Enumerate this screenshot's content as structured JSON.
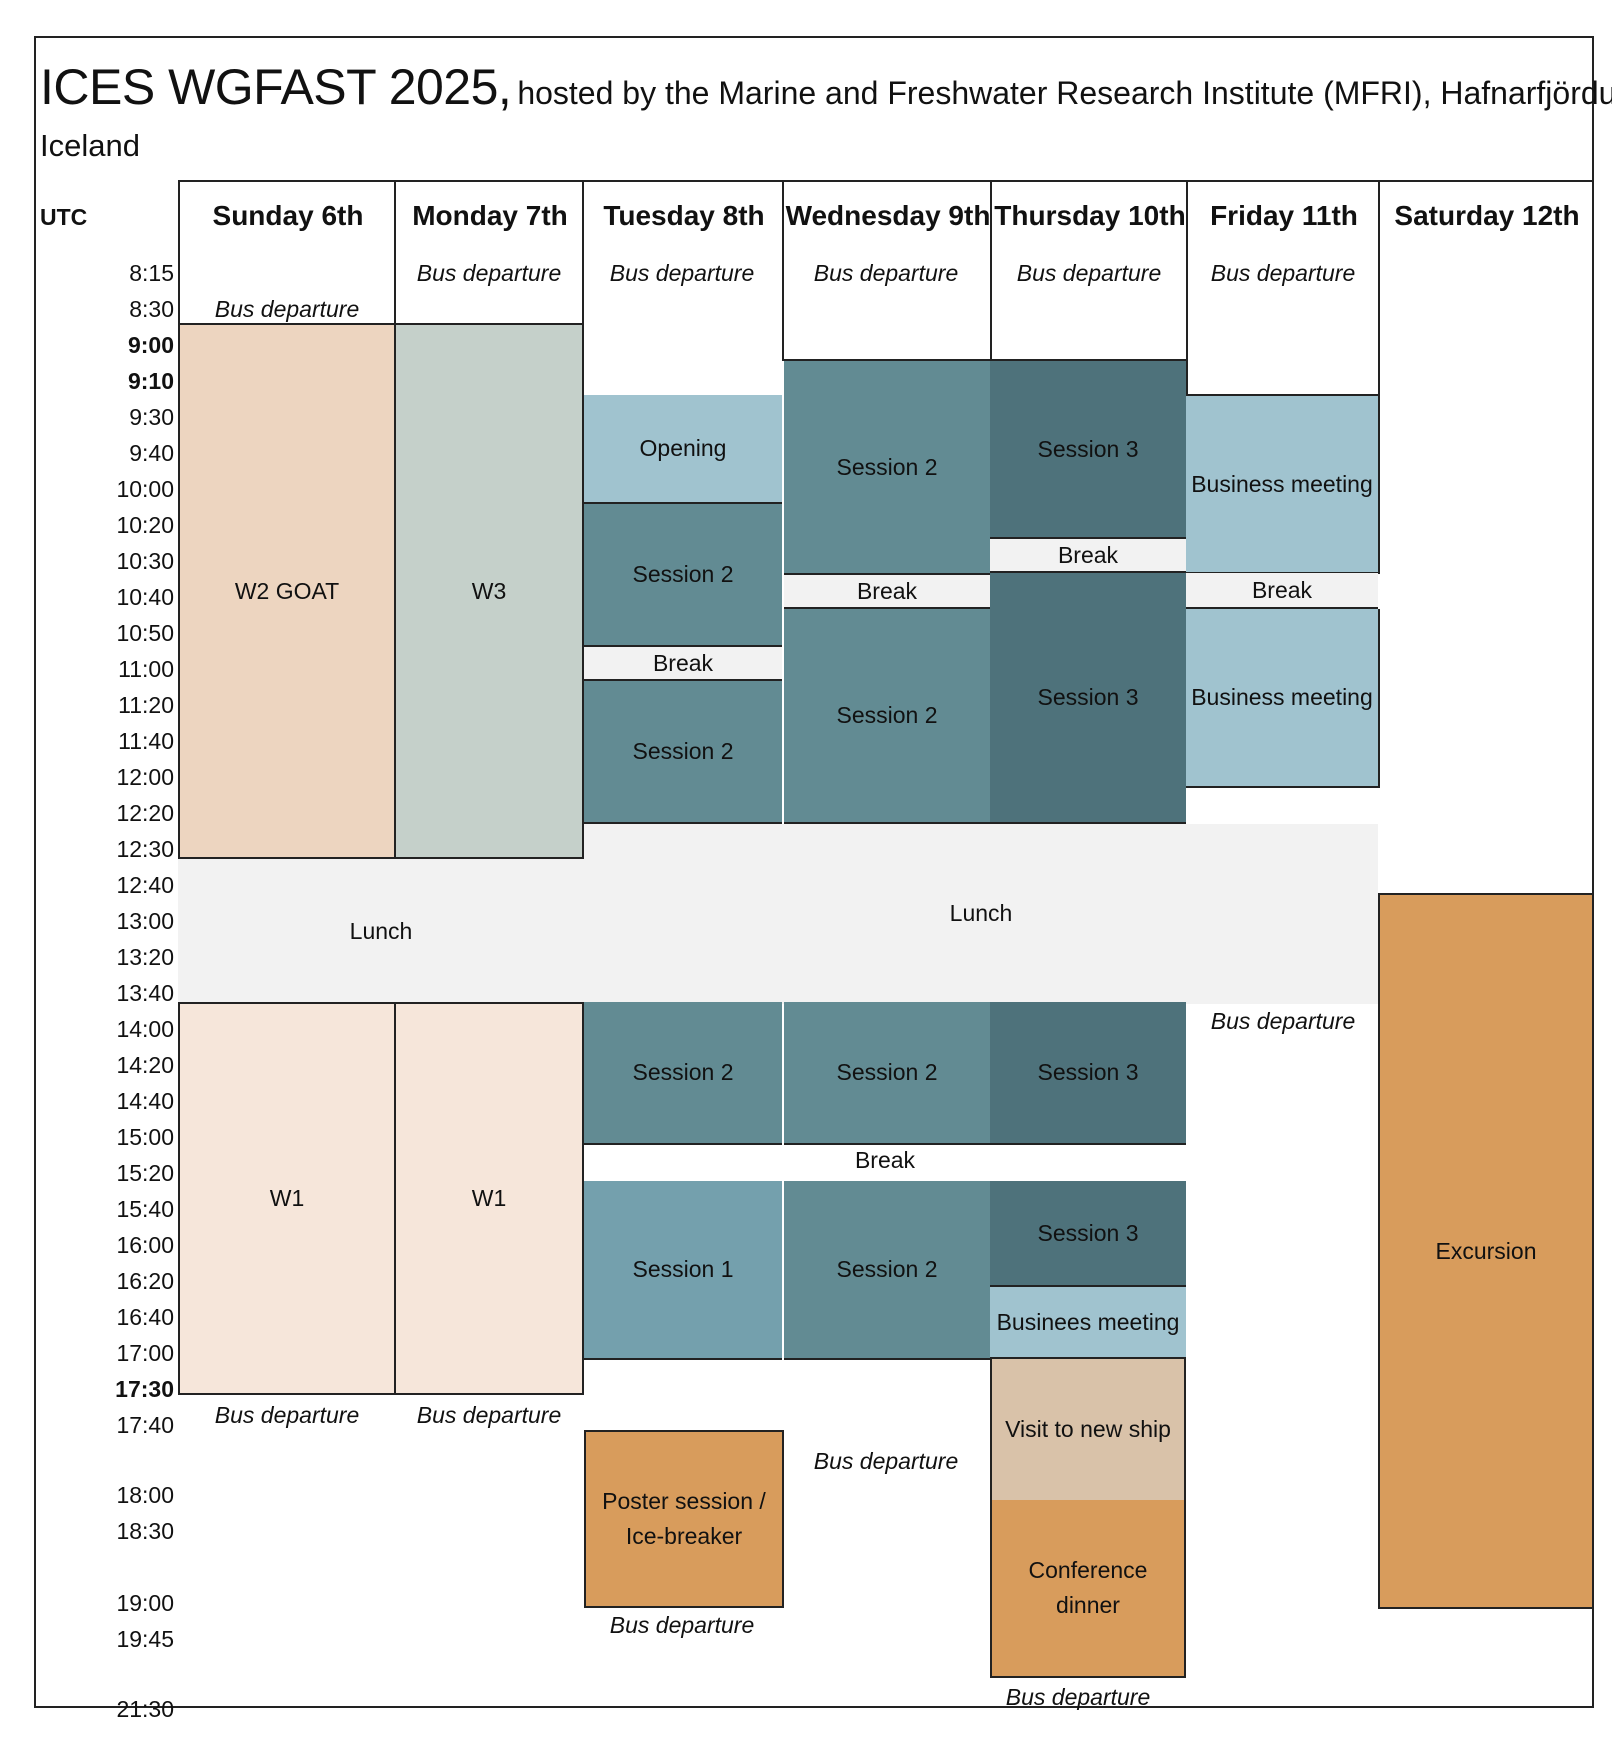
{
  "title": {
    "main": "ICES WGFAST 2025,",
    "sub": "hosted by the Marine and Freshwater Research Institute (MFRI), Hafnarfjördur",
    "line2": "Iceland"
  },
  "utc_label": "UTC",
  "days": [
    "Sunday 6th",
    "Monday 7th",
    "Tuesday 8th",
    "Wednesday 9th",
    "Thursday 10th",
    "Friday 11th",
    "Saturday 12th"
  ],
  "times": [
    "8:15",
    "8:30",
    "9:00",
    "9:10",
    "9:30",
    "9:40",
    "10:00",
    "10:20",
    "10:30",
    "10:40",
    "10:50",
    "11:00",
    "11:20",
    "11:40",
    "12:00",
    "12:20",
    "12:30",
    "12:40",
    "13:00",
    "13:20",
    "13:40",
    "14:00",
    "14:20",
    "14:40",
    "15:00",
    "15:20",
    "15:40",
    "16:00",
    "16:20",
    "16:40",
    "17:00",
    "17:30",
    "17:40",
    "18:00",
    "18:30",
    "19:00",
    "19:45",
    "21:30"
  ],
  "labels": {
    "bus_departure": "Bus departure",
    "w2_goat": "W2 GOAT",
    "w3": "W3",
    "w1": "W1",
    "lunch": "Lunch",
    "opening": "Opening",
    "session1": "Session 1",
    "session2": "Session 2",
    "session3": "Session 3",
    "break": "Break",
    "business_meeting": "Business meeting",
    "businees_meeting": "Businees meeting",
    "visit_ship": "Visit to new ship",
    "conference_dinner": "Conference dinner",
    "poster_session": "Poster session / Ice-breaker",
    "excursion": "Excursion"
  },
  "colors": {
    "workshop_morning_sunday": "#edd5c0",
    "workshop_morning_monday": "#c5d0ca",
    "workshop_afternoon": "#f6e6da",
    "opening_business": "#a0c3cf",
    "session1": "#74a0ad",
    "session2": "#628b93",
    "session3": "#4e727b",
    "break_lunch": "#f2f2f2",
    "social_events": "#d89c5c",
    "ship_visit": "#d9c2a9"
  }
}
